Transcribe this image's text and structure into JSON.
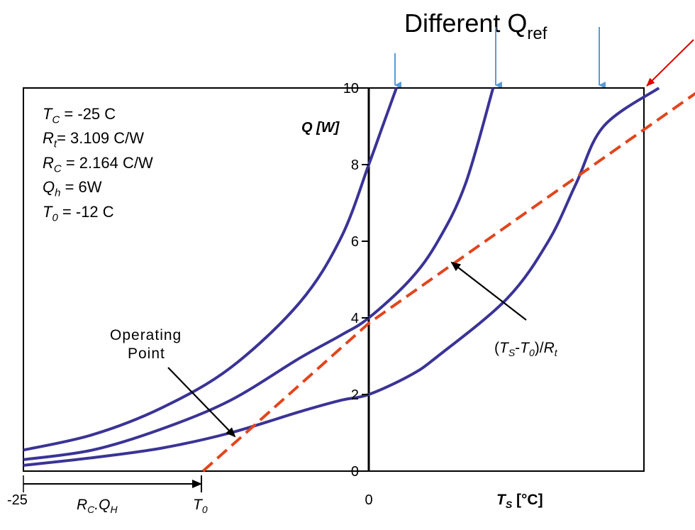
{
  "header": {
    "title_main": "Different Q",
    "title_sub": "ref"
  },
  "params": [
    {
      "sym": "T",
      "sub": "C",
      "rest": " = -25 C"
    },
    {
      "sym": "R",
      "sub": "t",
      "rest": "= 3.109 C/W"
    },
    {
      "sym": "R",
      "sub": "C",
      "rest": " = 2.164 C/W"
    },
    {
      "sym": "Q",
      "sub": "h",
      "rest": " = 6W"
    },
    {
      "sym": "T",
      "sub": "0",
      "rest": " = -12 C"
    }
  ],
  "annotations": {
    "operating_point_line1": "Operating",
    "operating_point_line2": "Point",
    "line_label_open": "(",
    "line_label_T": "T",
    "line_label_S": "S",
    "line_label_minus": "-",
    "line_label_T2": "T",
    "line_label_0": "0",
    "line_label_close": ")/",
    "line_label_R": "R",
    "line_label_t": "t",
    "rcqh_R": "R",
    "rcqh_C": "C",
    "rcqh_dot": ".Q",
    "rcqh_H": "H",
    "t0_T": "T",
    "t0_0": "0",
    "bottom_left_tick": "-25"
  },
  "colors": {
    "curve": "#3a3396",
    "dashed_line": "#e2451d",
    "title_arrow": "#5b9bd5",
    "red_arrow": "#e00000",
    "axis": "#000000"
  },
  "chart_data": {
    "type": "line",
    "title": "",
    "xlabel_main": "T",
    "xlabel_sub": "S",
    "xlabel_unit": " [°C]",
    "ylabel": "Q [W]",
    "ylim": [
      0,
      10
    ],
    "y_ticks": [
      0,
      2,
      4,
      6,
      8,
      10
    ],
    "x_ticks": [
      0
    ],
    "xlim": [
      -25,
      25
    ],
    "grid": false,
    "series": [
      {
        "kind": "curve",
        "points": [
          [
            -25,
            0.55
          ],
          [
            -20,
            0.95
          ],
          [
            -15,
            1.65
          ],
          [
            -10,
            2.7
          ],
          [
            -5,
            4.4
          ],
          [
            -2,
            6.1
          ],
          [
            0,
            8.0
          ],
          [
            1,
            9.0
          ],
          [
            2,
            10.0
          ]
        ]
      },
      {
        "kind": "curve",
        "points": [
          [
            -25,
            0.3
          ],
          [
            -20,
            0.55
          ],
          [
            -15,
            1.1
          ],
          [
            -10,
            1.85
          ],
          [
            -5,
            2.95
          ],
          [
            -2,
            3.55
          ],
          [
            0,
            4.0
          ],
          [
            3,
            5.0
          ],
          [
            5,
            6.0
          ],
          [
            7,
            7.5
          ],
          [
            9,
            10.0
          ]
        ]
      },
      {
        "kind": "curve",
        "points": [
          [
            -25,
            0.15
          ],
          [
            -20,
            0.35
          ],
          [
            -15,
            0.6
          ],
          [
            -10,
            1.0
          ],
          [
            -5,
            1.55
          ],
          [
            -2,
            1.85
          ],
          [
            0,
            2.0
          ],
          [
            3,
            2.5
          ],
          [
            5,
            3.0
          ],
          [
            10,
            4.5
          ],
          [
            13,
            6.0
          ],
          [
            15,
            7.5
          ],
          [
            17,
            9.0
          ],
          [
            21,
            10.0
          ]
        ]
      },
      {
        "kind": "dashed",
        "points": [
          [
            -12,
            0
          ],
          [
            0,
            3.86
          ],
          [
            24.2,
            10.0
          ]
        ]
      }
    ]
  }
}
